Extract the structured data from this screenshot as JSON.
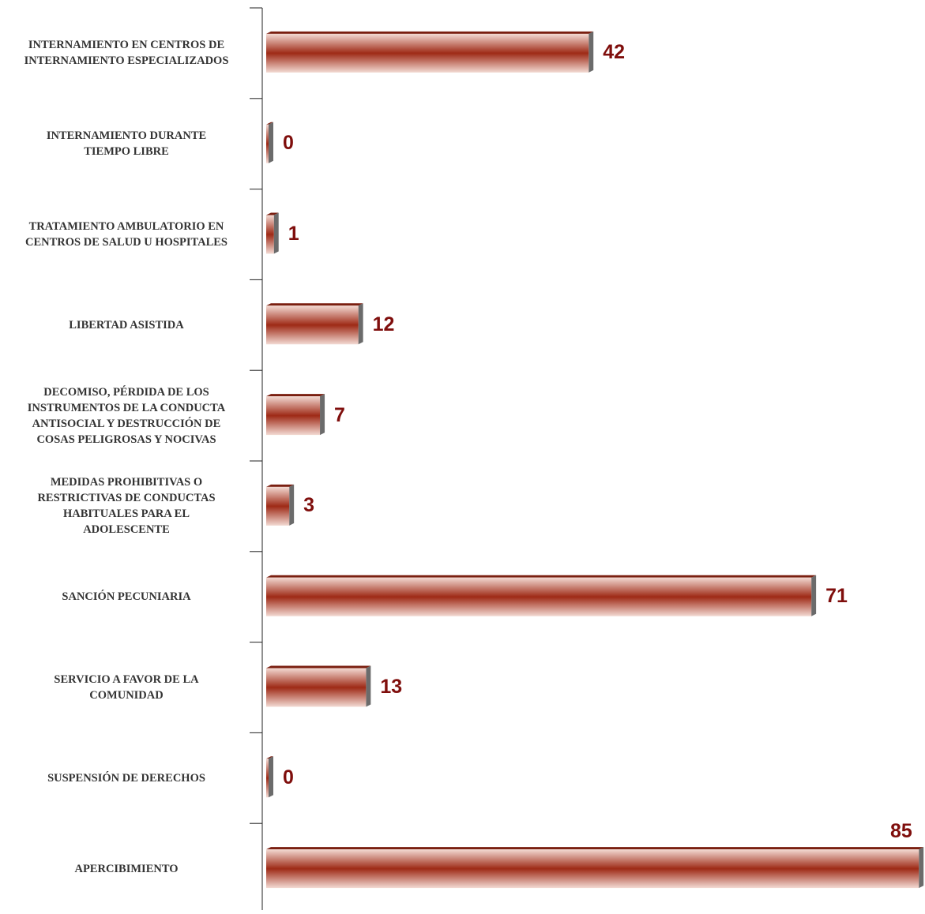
{
  "chart_data": {
    "type": "bar",
    "orientation": "horizontal",
    "categories": [
      "INTERNAMIENTO EN CENTROS DE\nINTERNAMIENTO ESPECIALIZADOS",
      "INTERNAMIENTO DURANTE\nTIEMPO LIBRE",
      "TRATAMIENTO AMBULATORIO EN\nCENTROS DE SALUD U HOSPITALES",
      "LIBERTAD ASISTIDA",
      "DECOMISO, PÉRDIDA DE LOS\nINSTRUMENTOS DE LA CONDUCTA\nANTISOCIAL Y DESTRUCCIÓN DE\nCOSAS PELIGROSAS Y NOCIVAS",
      "MEDIDAS PROHIBITIVAS O\nRESTRICTIVAS DE CONDUCTAS\nHABITUALES PARA EL\nADOLESCENTE",
      "SANCIÓN PECUNIARIA",
      "SERVICIO A FAVOR DE LA\nCOMUNIDAD",
      "SUSPENSIÓN DE DERECHOS",
      "APERCIBIMIENTO"
    ],
    "values": [
      42,
      0,
      1,
      12,
      7,
      3,
      71,
      13,
      0,
      85
    ],
    "data_labels": [
      "42",
      "0",
      "1",
      "12",
      "7",
      "3",
      "71",
      "13",
      "0",
      "85"
    ],
    "title": "",
    "xlabel": "",
    "ylabel": "",
    "xlim": [
      0,
      85
    ],
    "grid": false,
    "legend": "none",
    "colors": {
      "bar_dark": "#9e2a16",
      "bar_light": "#f3dad3",
      "bar_edge": "#7a1f10",
      "bar_side": "#6b6b6b",
      "value_text": "#7f0e0c",
      "category_text": "#333333",
      "axis": "#222222"
    }
  }
}
